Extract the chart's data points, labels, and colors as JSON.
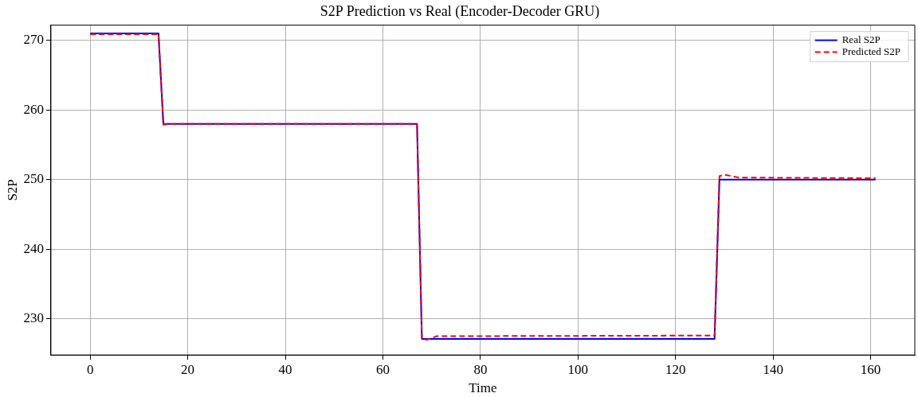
{
  "chart_data": {
    "type": "line",
    "title": "S2P Prediction vs Real (Encoder-Decoder GRU)",
    "xlabel": "Time",
    "ylabel": "S2P",
    "series": [
      {
        "name": "Real S2P",
        "color": "#0000ff",
        "line_style": "solid",
        "x": [
          0,
          14,
          15,
          67,
          68,
          128,
          129,
          161
        ],
        "values": [
          271,
          271,
          258,
          258,
          227.1,
          227.1,
          250,
          250
        ]
      },
      {
        "name": "Predicted S2P",
        "color": "#ff0000",
        "line_style": "dashed",
        "x": [
          0,
          14,
          15,
          16,
          67,
          68,
          69,
          71,
          128,
          129,
          130,
          133,
          161
        ],
        "values": [
          270.9,
          270.9,
          257.9,
          258,
          258,
          227.1,
          227,
          227.5,
          227.6,
          250.5,
          250.7,
          250.3,
          250.2
        ]
      }
    ],
    "xlim": [
      -8.05,
      169.05
    ],
    "xticks": [
      0,
      20,
      40,
      60,
      80,
      100,
      120,
      140,
      160
    ],
    "ylim": [
      224.8,
      272.2
    ],
    "yticks": [
      230,
      240,
      250,
      260,
      270
    ],
    "grid": true,
    "legend": "top right",
    "marker": "none"
  }
}
